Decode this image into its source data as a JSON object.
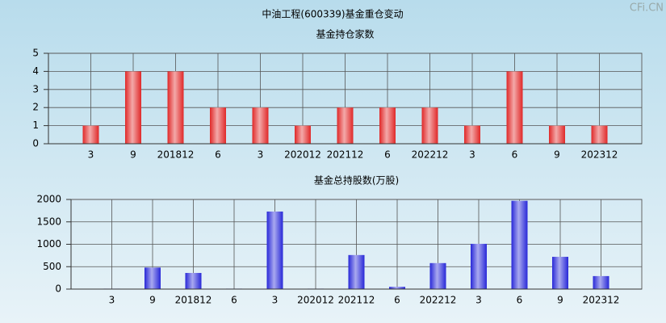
{
  "title": "中油工程(600339)基金重仓变动",
  "watermark": "CFi.CN",
  "chart_data": [
    {
      "type": "bar",
      "title": "基金持仓家数",
      "categories": [
        "3",
        "9",
        "201812",
        "6",
        "3",
        "202012",
        "202112",
        "6",
        "202212",
        "3",
        "6",
        "9",
        "202312"
      ],
      "values": [
        1,
        4,
        4,
        2,
        2,
        1,
        2,
        2,
        2,
        1,
        4,
        1,
        1
      ],
      "color": "#e02828",
      "ylim": [
        0,
        5
      ],
      "yticks": [
        0,
        1,
        2,
        3,
        4,
        5
      ],
      "grid": true
    },
    {
      "type": "bar",
      "title": "基金总持股数(万股)",
      "categories": [
        "3",
        "9",
        "201812",
        "6",
        "3",
        "202012",
        "202112",
        "6",
        "202212",
        "3",
        "6",
        "9",
        "202312"
      ],
      "values": [
        10,
        480,
        360,
        10,
        1730,
        10,
        760,
        50,
        580,
        1010,
        1970,
        720,
        290
      ],
      "color": "#2828d8",
      "ylim": [
        0,
        2000
      ],
      "yticks": [
        0,
        500,
        1000,
        1500,
        2000
      ],
      "grid": true
    }
  ]
}
